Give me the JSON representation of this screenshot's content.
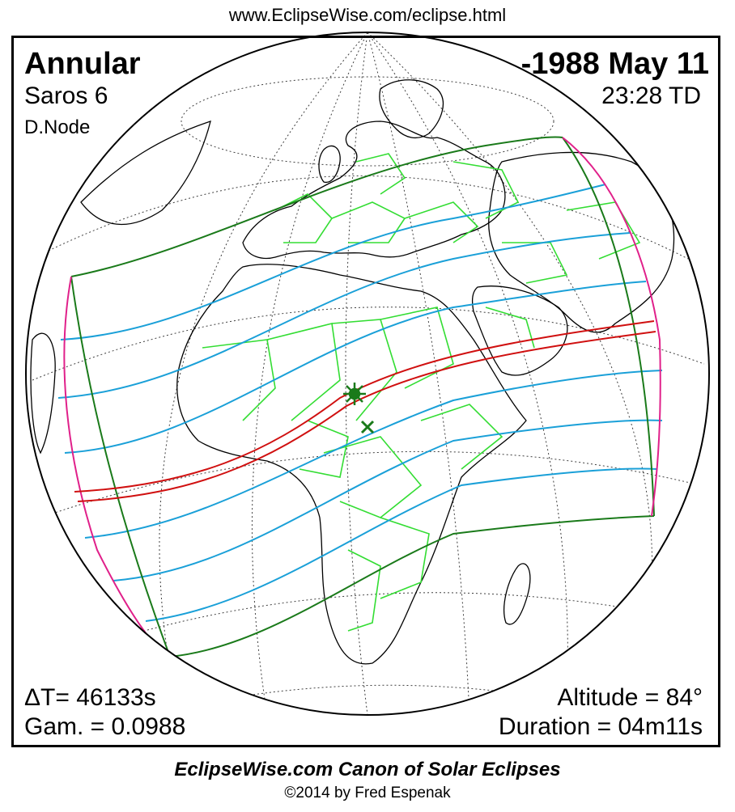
{
  "header": {
    "url": "www.EclipseWise.com/eclipse.html"
  },
  "eclipse": {
    "type": "Annular",
    "date": "-1988 May 11",
    "saros": "Saros   6",
    "time": "23:28 TD",
    "node": "D.Node",
    "delta_t": "ΔT=  46133s",
    "gamma": "Gam. = 0.0988",
    "altitude": "Altitude = 84°",
    "duration": "Duration = 04m11s"
  },
  "footer": {
    "title": "EclipseWise.com Canon of Solar Eclipses",
    "copyright": "©2014 by Fred Espenak"
  },
  "colors": {
    "penumbra_limits": "#1a7a1a",
    "magnitude_lines": "#1aa0d8",
    "central_path": "#d01010",
    "rise_set_curves": "#e0208a",
    "borders": "#33dd33",
    "coastlines": "#000000",
    "grid": "#000000"
  },
  "markers": {
    "greatest_eclipse": "star-icon",
    "subsolar_point": "x-icon"
  }
}
